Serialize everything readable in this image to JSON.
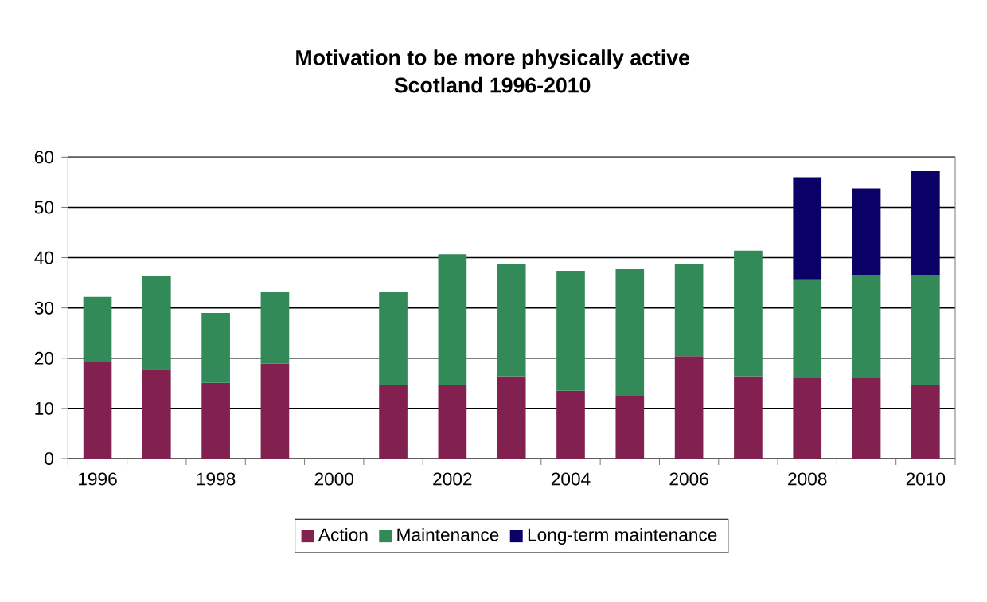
{
  "chart_data": {
    "type": "bar",
    "title": "Motivation to be more physically active",
    "subtitle": "Scotland 1996-2010",
    "categories": [
      "1996",
      null,
      "1998",
      null,
      "2000",
      null,
      "2002",
      null,
      "2004",
      null,
      "2006",
      null,
      "2008",
      null,
      "2010"
    ],
    "series": [
      {
        "name": "Action",
        "color": "#82204f",
        "values": [
          19.3,
          17.7,
          15.1,
          18.9,
          null,
          14.7,
          14.7,
          16.4,
          13.5,
          12.5,
          20.4,
          16.4,
          16.0,
          16.0,
          14.7
        ]
      },
      {
        "name": "Maintenance",
        "color": "#318a58",
        "values": [
          12.9,
          18.6,
          13.9,
          14.2,
          null,
          18.4,
          26.0,
          22.4,
          23.9,
          25.2,
          18.4,
          25.0,
          19.7,
          20.6,
          21.9
        ]
      },
      {
        "name": "Long-term maintenance",
        "color": "#0a0066",
        "values": [
          null,
          null,
          null,
          null,
          null,
          null,
          null,
          null,
          null,
          null,
          null,
          null,
          20.3,
          17.2,
          20.6
        ]
      }
    ],
    "stacked": true,
    "ylim": [
      0,
      60
    ],
    "yticks": [
      0,
      10,
      20,
      30,
      40,
      50,
      60
    ],
    "grid": "y",
    "legend": "bottom"
  }
}
